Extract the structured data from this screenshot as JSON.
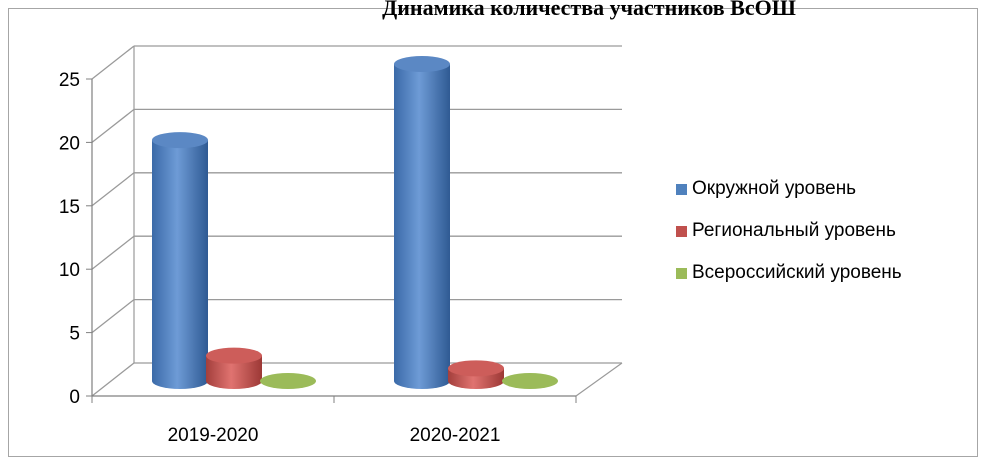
{
  "chart_data": {
    "type": "bar",
    "title": "Динамика количества участников ВсОШ",
    "categories": [
      "2019-2020",
      "2020-2021"
    ],
    "series": [
      {
        "name": "Окружной уровень",
        "values": [
          19,
          25
        ],
        "color": "#4f81bd"
      },
      {
        "name": "Региональный уровень",
        "values": [
          2,
          1
        ],
        "color": "#c0504d"
      },
      {
        "name": "Всероссийский уровень",
        "values": [
          0,
          0
        ],
        "color": "#9bbb59"
      }
    ],
    "ylim": [
      0,
      25
    ],
    "yticks": [
      "0",
      "5",
      "10",
      "15",
      "20",
      "25"
    ],
    "grid": true,
    "legend": "right",
    "style": "3d-cylinder"
  }
}
